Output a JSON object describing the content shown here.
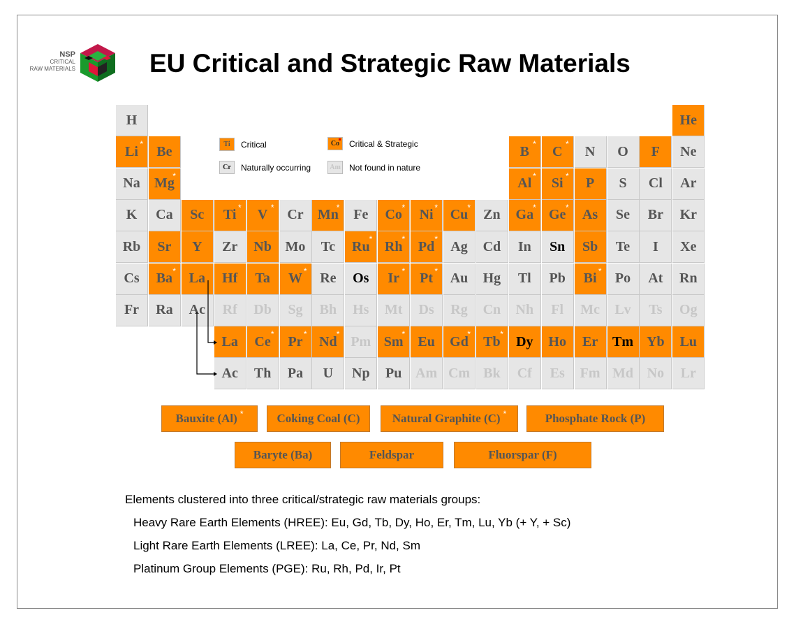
{
  "title": "EU Critical and Strategic Raw Materials",
  "logo": {
    "line1": "NSP",
    "line2": "CRITICAL",
    "line3": "RAW MATERIALS"
  },
  "colors": {
    "critical": "#ff8a00",
    "natural": "#e6e6e6",
    "not_in_nature_text": "#c7c7c7",
    "strategic_marker": "#ffffff"
  },
  "legend": [
    {
      "symbol": "Ti",
      "label": "Critical",
      "kind": "crit"
    },
    {
      "symbol": "Co",
      "label": "Critical & Strategic",
      "kind": "cs"
    },
    {
      "symbol": "Cr",
      "label": "Naturally occurring",
      "kind": "nat"
    },
    {
      "symbol": "Am",
      "label": "Not found in nature",
      "kind": "none"
    }
  ],
  "elements": [
    {
      "s": "H",
      "r": 1,
      "c": 1,
      "t": "nat"
    },
    {
      "s": "He",
      "r": 1,
      "c": 18,
      "t": "crit"
    },
    {
      "s": "Li",
      "r": 2,
      "c": 1,
      "t": "crit",
      "star": true
    },
    {
      "s": "Be",
      "r": 2,
      "c": 2,
      "t": "crit"
    },
    {
      "s": "B",
      "r": 2,
      "c": 13,
      "t": "crit",
      "star": true
    },
    {
      "s": "C",
      "r": 2,
      "c": 14,
      "t": "crit",
      "star": true
    },
    {
      "s": "N",
      "r": 2,
      "c": 15,
      "t": "nat"
    },
    {
      "s": "O",
      "r": 2,
      "c": 16,
      "t": "nat"
    },
    {
      "s": "F",
      "r": 2,
      "c": 17,
      "t": "crit"
    },
    {
      "s": "Ne",
      "r": 2,
      "c": 18,
      "t": "nat"
    },
    {
      "s": "Na",
      "r": 3,
      "c": 1,
      "t": "nat"
    },
    {
      "s": "Mg",
      "r": 3,
      "c": 2,
      "t": "crit",
      "star": true
    },
    {
      "s": "Al",
      "r": 3,
      "c": 13,
      "t": "crit",
      "star": true
    },
    {
      "s": "Si",
      "r": 3,
      "c": 14,
      "t": "crit",
      "star": true
    },
    {
      "s": "P",
      "r": 3,
      "c": 15,
      "t": "crit"
    },
    {
      "s": "S",
      "r": 3,
      "c": 16,
      "t": "nat"
    },
    {
      "s": "Cl",
      "r": 3,
      "c": 17,
      "t": "nat"
    },
    {
      "s": "Ar",
      "r": 3,
      "c": 18,
      "t": "nat"
    },
    {
      "s": "K",
      "r": 4,
      "c": 1,
      "t": "nat"
    },
    {
      "s": "Ca",
      "r": 4,
      "c": 2,
      "t": "nat"
    },
    {
      "s": "Sc",
      "r": 4,
      "c": 3,
      "t": "crit"
    },
    {
      "s": "Ti",
      "r": 4,
      "c": 4,
      "t": "crit",
      "star": true
    },
    {
      "s": "V",
      "r": 4,
      "c": 5,
      "t": "crit",
      "star": true
    },
    {
      "s": "Cr",
      "r": 4,
      "c": 6,
      "t": "nat"
    },
    {
      "s": "Mn",
      "r": 4,
      "c": 7,
      "t": "crit",
      "star": true
    },
    {
      "s": "Fe",
      "r": 4,
      "c": 8,
      "t": "nat"
    },
    {
      "s": "Co",
      "r": 4,
      "c": 9,
      "t": "crit",
      "star": true
    },
    {
      "s": "Ni",
      "r": 4,
      "c": 10,
      "t": "crit",
      "star": true
    },
    {
      "s": "Cu",
      "r": 4,
      "c": 11,
      "t": "crit",
      "star": true
    },
    {
      "s": "Zn",
      "r": 4,
      "c": 12,
      "t": "nat"
    },
    {
      "s": "Ga",
      "r": 4,
      "c": 13,
      "t": "crit",
      "star": true
    },
    {
      "s": "Ge",
      "r": 4,
      "c": 14,
      "t": "crit",
      "star": true
    },
    {
      "s": "As",
      "r": 4,
      "c": 15,
      "t": "crit"
    },
    {
      "s": "Se",
      "r": 4,
      "c": 16,
      "t": "nat"
    },
    {
      "s": "Br",
      "r": 4,
      "c": 17,
      "t": "nat"
    },
    {
      "s": "Kr",
      "r": 4,
      "c": 18,
      "t": "nat"
    },
    {
      "s": "Rb",
      "r": 5,
      "c": 1,
      "t": "nat"
    },
    {
      "s": "Sr",
      "r": 5,
      "c": 2,
      "t": "crit"
    },
    {
      "s": "Y",
      "r": 5,
      "c": 3,
      "t": "crit"
    },
    {
      "s": "Zr",
      "r": 5,
      "c": 4,
      "t": "nat"
    },
    {
      "s": "Nb",
      "r": 5,
      "c": 5,
      "t": "crit"
    },
    {
      "s": "Mo",
      "r": 5,
      "c": 6,
      "t": "nat"
    },
    {
      "s": "Tc",
      "r": 5,
      "c": 7,
      "t": "nat"
    },
    {
      "s": "Ru",
      "r": 5,
      "c": 8,
      "t": "crit",
      "star": true
    },
    {
      "s": "Rh",
      "r": 5,
      "c": 9,
      "t": "crit",
      "star": true
    },
    {
      "s": "Pd",
      "r": 5,
      "c": 10,
      "t": "crit",
      "star": true
    },
    {
      "s": "Ag",
      "r": 5,
      "c": 11,
      "t": "nat"
    },
    {
      "s": "Cd",
      "r": 5,
      "c": 12,
      "t": "nat"
    },
    {
      "s": "In",
      "r": 5,
      "c": 13,
      "t": "nat"
    },
    {
      "s": "Sn",
      "r": 5,
      "c": 14,
      "t": "nat",
      "black": true
    },
    {
      "s": "Sb",
      "r": 5,
      "c": 15,
      "t": "crit"
    },
    {
      "s": "Te",
      "r": 5,
      "c": 16,
      "t": "nat"
    },
    {
      "s": "I",
      "r": 5,
      "c": 17,
      "t": "nat"
    },
    {
      "s": "Xe",
      "r": 5,
      "c": 18,
      "t": "nat"
    },
    {
      "s": "Cs",
      "r": 6,
      "c": 1,
      "t": "nat"
    },
    {
      "s": "Ba",
      "r": 6,
      "c": 2,
      "t": "crit",
      "star": true
    },
    {
      "s": "La",
      "r": 6,
      "c": 3,
      "t": "crit"
    },
    {
      "s": "Hf",
      "r": 6,
      "c": 4,
      "t": "crit"
    },
    {
      "s": "Ta",
      "r": 6,
      "c": 5,
      "t": "crit"
    },
    {
      "s": "W",
      "r": 6,
      "c": 6,
      "t": "crit",
      "star": true
    },
    {
      "s": "Re",
      "r": 6,
      "c": 7,
      "t": "nat"
    },
    {
      "s": "Os",
      "r": 6,
      "c": 8,
      "t": "nat",
      "black": true
    },
    {
      "s": "Ir",
      "r": 6,
      "c": 9,
      "t": "crit",
      "star": true
    },
    {
      "s": "Pt",
      "r": 6,
      "c": 10,
      "t": "crit",
      "star": true
    },
    {
      "s": "Au",
      "r": 6,
      "c": 11,
      "t": "nat"
    },
    {
      "s": "Hg",
      "r": 6,
      "c": 12,
      "t": "nat"
    },
    {
      "s": "Tl",
      "r": 6,
      "c": 13,
      "t": "nat"
    },
    {
      "s": "Pb",
      "r": 6,
      "c": 14,
      "t": "nat"
    },
    {
      "s": "Bi",
      "r": 6,
      "c": 15,
      "t": "crit",
      "star": true
    },
    {
      "s": "Po",
      "r": 6,
      "c": 16,
      "t": "nat"
    },
    {
      "s": "At",
      "r": 6,
      "c": 17,
      "t": "nat"
    },
    {
      "s": "Rn",
      "r": 6,
      "c": 18,
      "t": "nat"
    },
    {
      "s": "Fr",
      "r": 7,
      "c": 1,
      "t": "nat"
    },
    {
      "s": "Ra",
      "r": 7,
      "c": 2,
      "t": "nat"
    },
    {
      "s": "Ac",
      "r": 7,
      "c": 3,
      "t": "nat"
    },
    {
      "s": "Rf",
      "r": 7,
      "c": 4,
      "t": "none"
    },
    {
      "s": "Db",
      "r": 7,
      "c": 5,
      "t": "none"
    },
    {
      "s": "Sg",
      "r": 7,
      "c": 6,
      "t": "none"
    },
    {
      "s": "Bh",
      "r": 7,
      "c": 7,
      "t": "none"
    },
    {
      "s": "Hs",
      "r": 7,
      "c": 8,
      "t": "none"
    },
    {
      "s": "Mt",
      "r": 7,
      "c": 9,
      "t": "none"
    },
    {
      "s": "Ds",
      "r": 7,
      "c": 10,
      "t": "none"
    },
    {
      "s": "Rg",
      "r": 7,
      "c": 11,
      "t": "none"
    },
    {
      "s": "Cn",
      "r": 7,
      "c": 12,
      "t": "none"
    },
    {
      "s": "Nh",
      "r": 7,
      "c": 13,
      "t": "none"
    },
    {
      "s": "Fl",
      "r": 7,
      "c": 14,
      "t": "none"
    },
    {
      "s": "Mc",
      "r": 7,
      "c": 15,
      "t": "none"
    },
    {
      "s": "Lv",
      "r": 7,
      "c": 16,
      "t": "none"
    },
    {
      "s": "Ts",
      "r": 7,
      "c": 17,
      "t": "none"
    },
    {
      "s": "Og",
      "r": 7,
      "c": 18,
      "t": "none"
    },
    {
      "s": "La",
      "r": 8,
      "c": 4,
      "t": "crit"
    },
    {
      "s": "Ce",
      "r": 8,
      "c": 5,
      "t": "crit",
      "star": true
    },
    {
      "s": "Pr",
      "r": 8,
      "c": 6,
      "t": "crit",
      "star": true
    },
    {
      "s": "Nd",
      "r": 8,
      "c": 7,
      "t": "crit",
      "star": true
    },
    {
      "s": "Pm",
      "r": 8,
      "c": 8,
      "t": "none"
    },
    {
      "s": "Sm",
      "r": 8,
      "c": 9,
      "t": "crit",
      "star": true
    },
    {
      "s": "Eu",
      "r": 8,
      "c": 10,
      "t": "crit"
    },
    {
      "s": "Gd",
      "r": 8,
      "c": 11,
      "t": "crit",
      "star": true
    },
    {
      "s": "Tb",
      "r": 8,
      "c": 12,
      "t": "crit",
      "star": true
    },
    {
      "s": "Dy",
      "r": 8,
      "c": 13,
      "t": "crit",
      "black": true
    },
    {
      "s": "Ho",
      "r": 8,
      "c": 14,
      "t": "crit"
    },
    {
      "s": "Er",
      "r": 8,
      "c": 15,
      "t": "crit"
    },
    {
      "s": "Tm",
      "r": 8,
      "c": 16,
      "t": "crit",
      "black": true
    },
    {
      "s": "Yb",
      "r": 8,
      "c": 17,
      "t": "crit"
    },
    {
      "s": "Lu",
      "r": 8,
      "c": 18,
      "t": "crit"
    },
    {
      "s": "Ac",
      "r": 9,
      "c": 4,
      "t": "nat"
    },
    {
      "s": "Th",
      "r": 9,
      "c": 5,
      "t": "nat"
    },
    {
      "s": "Pa",
      "r": 9,
      "c": 6,
      "t": "nat"
    },
    {
      "s": "U",
      "r": 9,
      "c": 7,
      "t": "nat"
    },
    {
      "s": "Np",
      "r": 9,
      "c": 8,
      "t": "nat"
    },
    {
      "s": "Pu",
      "r": 9,
      "c": 9,
      "t": "nat"
    },
    {
      "s": "Am",
      "r": 9,
      "c": 10,
      "t": "none"
    },
    {
      "s": "Cm",
      "r": 9,
      "c": 11,
      "t": "none"
    },
    {
      "s": "Bk",
      "r": 9,
      "c": 12,
      "t": "none"
    },
    {
      "s": "Cf",
      "r": 9,
      "c": 13,
      "t": "none"
    },
    {
      "s": "Es",
      "r": 9,
      "c": 14,
      "t": "none"
    },
    {
      "s": "Fm",
      "r": 9,
      "c": 15,
      "t": "none"
    },
    {
      "s": "Md",
      "r": 9,
      "c": 16,
      "t": "none"
    },
    {
      "s": "No",
      "r": 9,
      "c": 17,
      "t": "none"
    },
    {
      "s": "Lr",
      "r": 9,
      "c": 18,
      "t": "none"
    }
  ],
  "materials_row1": [
    {
      "label": "Bauxite (Al)",
      "star": true
    },
    {
      "label": "Coking Coal (C)",
      "star": false
    },
    {
      "label": "Natural Graphite (C)",
      "star": true
    },
    {
      "label": "Phosphate Rock (P)",
      "star": false
    }
  ],
  "materials_row2": [
    {
      "label": "Baryte (Ba)",
      "star": false
    },
    {
      "label": "Feldspar",
      "star": false
    },
    {
      "label": "Fluorspar (F)",
      "star": false
    }
  ],
  "notes": {
    "intro": "Elements clustered into three critical/strategic raw materials groups:",
    "hree": "Heavy Rare Earth Elements (HREE): Eu, Gd, Tb, Dy, Ho, Er, Tm, Lu, Yb (+ Y, + Sc)",
    "lree": "Light Rare Earth Elements (LREE): La, Ce, Pr, Nd, Sm",
    "pge": "Platinum Group Elements (PGE): Ru, Rh, Pd, Ir, Pt"
  }
}
